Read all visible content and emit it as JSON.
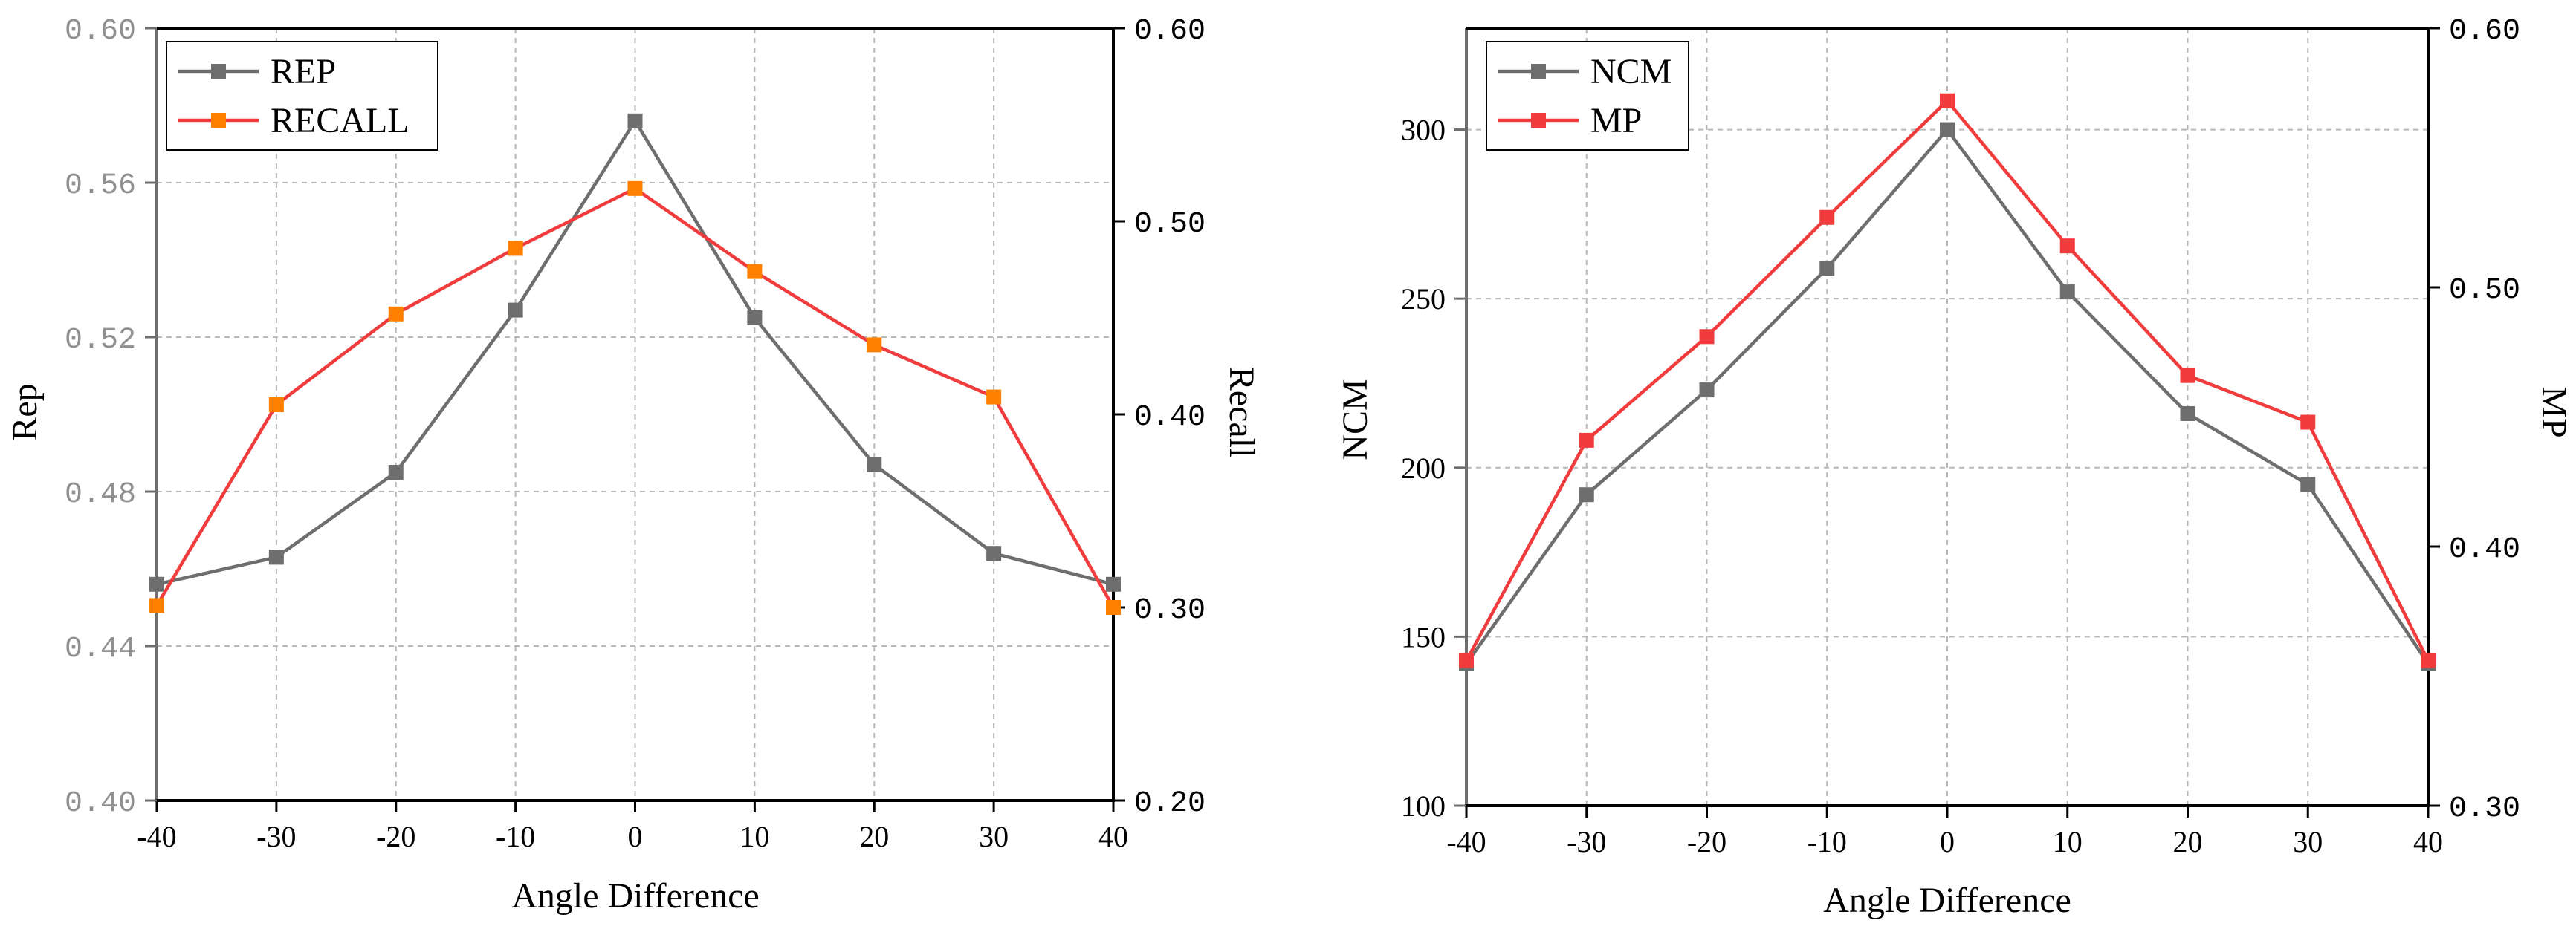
{
  "chart_data": [
    {
      "type": "line",
      "xlabel": "Angle Difference",
      "ylabel_left": "Rep",
      "ylabel_right": "Recall",
      "x": [
        -40,
        -30,
        -20,
        -10,
        0,
        10,
        20,
        30,
        40
      ],
      "xticks": [
        "-40",
        "-30",
        "-20",
        "-10",
        "0",
        "10",
        "20",
        "30",
        "40"
      ],
      "xlim": [
        -40,
        40
      ],
      "ylim_left": [
        0.4,
        0.6
      ],
      "ylim_right": [
        0.2,
        0.6
      ],
      "yticks_left": [
        "0.40",
        "0.44",
        "0.48",
        "0.52",
        "0.56",
        "0.60"
      ],
      "yticks_right": [
        "0.20",
        "0.30",
        "0.40",
        "0.50",
        "0.60"
      ],
      "grid": true,
      "legend_position": "top-left",
      "series": [
        {
          "name": "REP",
          "axis": "left",
          "color": "#6e6e6e",
          "marker_color": "#6e6e6e",
          "values": [
            0.456,
            0.463,
            0.485,
            0.527,
            0.576,
            0.525,
            0.487,
            0.464,
            0.456
          ]
        },
        {
          "name": "RECALL",
          "axis": "right",
          "color": "#f03c3c",
          "marker_color": "#ff8000",
          "values": [
            0.301,
            0.405,
            0.452,
            0.486,
            0.517,
            0.474,
            0.436,
            0.409,
            0.3
          ]
        }
      ]
    },
    {
      "type": "line",
      "xlabel": "Angle Difference",
      "ylabel_left": "NCM",
      "ylabel_right": "MP",
      "x": [
        -40,
        -30,
        -20,
        -10,
        0,
        10,
        20,
        30,
        40
      ],
      "xticks": [
        "-40",
        "-30",
        "-20",
        "-10",
        "0",
        "10",
        "20",
        "30",
        "40"
      ],
      "xlim": [
        -40,
        40
      ],
      "ylim_left": [
        100,
        330
      ],
      "ylim_right": [
        0.3,
        0.6
      ],
      "yticks_left": [
        "100",
        "150",
        "200",
        "250",
        "300"
      ],
      "yticks_right": [
        "0.30",
        "0.40",
        "0.50",
        "0.60"
      ],
      "grid": true,
      "legend_position": "top-left",
      "series": [
        {
          "name": "NCM",
          "axis": "left",
          "color": "#6e6e6e",
          "marker_color": "#6e6e6e",
          "values": [
            142,
            192,
            223,
            259,
            300,
            252,
            216,
            195,
            142
          ]
        },
        {
          "name": "MP",
          "axis": "right",
          "color": "#f03c3c",
          "marker_color": "#f03c3c",
          "values": [
            0.356,
            0.441,
            0.481,
            0.527,
            0.572,
            0.516,
            0.466,
            0.448,
            0.356
          ]
        }
      ]
    }
  ]
}
